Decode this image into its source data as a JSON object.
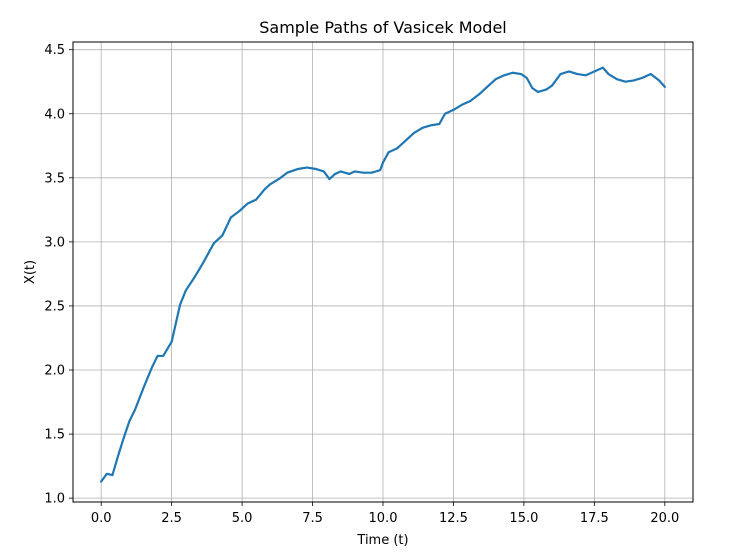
{
  "chart_data": {
    "type": "line",
    "title": "Sample Paths of Vasicek Model",
    "xlabel": "Time (t)",
    "ylabel": "X(t)",
    "xlim": [
      -1.0,
      21.0
    ],
    "ylim": [
      0.97,
      4.56
    ],
    "grid": true,
    "xticks": [
      0.0,
      2.5,
      5.0,
      7.5,
      10.0,
      12.5,
      15.0,
      17.5,
      20.0
    ],
    "xtick_labels": [
      "0.0",
      "2.5",
      "5.0",
      "7.5",
      "10.0",
      "12.5",
      "15.0",
      "17.5",
      "20.0"
    ],
    "yticks": [
      1.0,
      1.5,
      2.0,
      2.5,
      3.0,
      3.5,
      4.0,
      4.5
    ],
    "ytick_labels": [
      "1.0",
      "1.5",
      "2.0",
      "2.5",
      "3.0",
      "3.5",
      "4.0",
      "4.5"
    ],
    "series": [
      {
        "color": "#1f77b4",
        "x": [
          0.0,
          0.2,
          0.4,
          0.6,
          0.8,
          1.0,
          1.2,
          1.5,
          1.8,
          2.0,
          2.2,
          2.5,
          2.8,
          3.0,
          3.3,
          3.6,
          4.0,
          4.3,
          4.6,
          4.9,
          5.0,
          5.2,
          5.5,
          5.8,
          6.0,
          6.3,
          6.6,
          7.0,
          7.3,
          7.6,
          7.9,
          8.1,
          8.3,
          8.5,
          8.8,
          9.0,
          9.3,
          9.6,
          9.9,
          10.0,
          10.2,
          10.5,
          10.8,
          11.1,
          11.4,
          11.7,
          12.0,
          12.2,
          12.5,
          12.8,
          13.1,
          13.4,
          13.7,
          14.0,
          14.3,
          14.6,
          14.9,
          15.1,
          15.3,
          15.5,
          15.8,
          16.0,
          16.3,
          16.6,
          16.9,
          17.2,
          17.5,
          17.8,
          18.0,
          18.3,
          18.6,
          18.9,
          19.2,
          19.5,
          19.8,
          20.0
        ],
        "values": [
          1.13,
          1.19,
          1.18,
          1.33,
          1.47,
          1.6,
          1.69,
          1.86,
          2.02,
          2.11,
          2.11,
          2.22,
          2.51,
          2.62,
          2.72,
          2.83,
          2.99,
          3.05,
          3.19,
          3.24,
          3.26,
          3.3,
          3.33,
          3.41,
          3.45,
          3.49,
          3.54,
          3.57,
          3.58,
          3.57,
          3.55,
          3.49,
          3.53,
          3.55,
          3.53,
          3.55,
          3.54,
          3.54,
          3.56,
          3.62,
          3.7,
          3.73,
          3.79,
          3.85,
          3.89,
          3.91,
          3.92,
          4.0,
          4.03,
          4.07,
          4.1,
          4.15,
          4.21,
          4.27,
          4.3,
          4.32,
          4.31,
          4.28,
          4.2,
          4.17,
          4.19,
          4.22,
          4.31,
          4.33,
          4.31,
          4.3,
          4.33,
          4.36,
          4.31,
          4.27,
          4.25,
          4.26,
          4.28,
          4.31,
          4.26,
          4.21
        ]
      }
    ]
  }
}
